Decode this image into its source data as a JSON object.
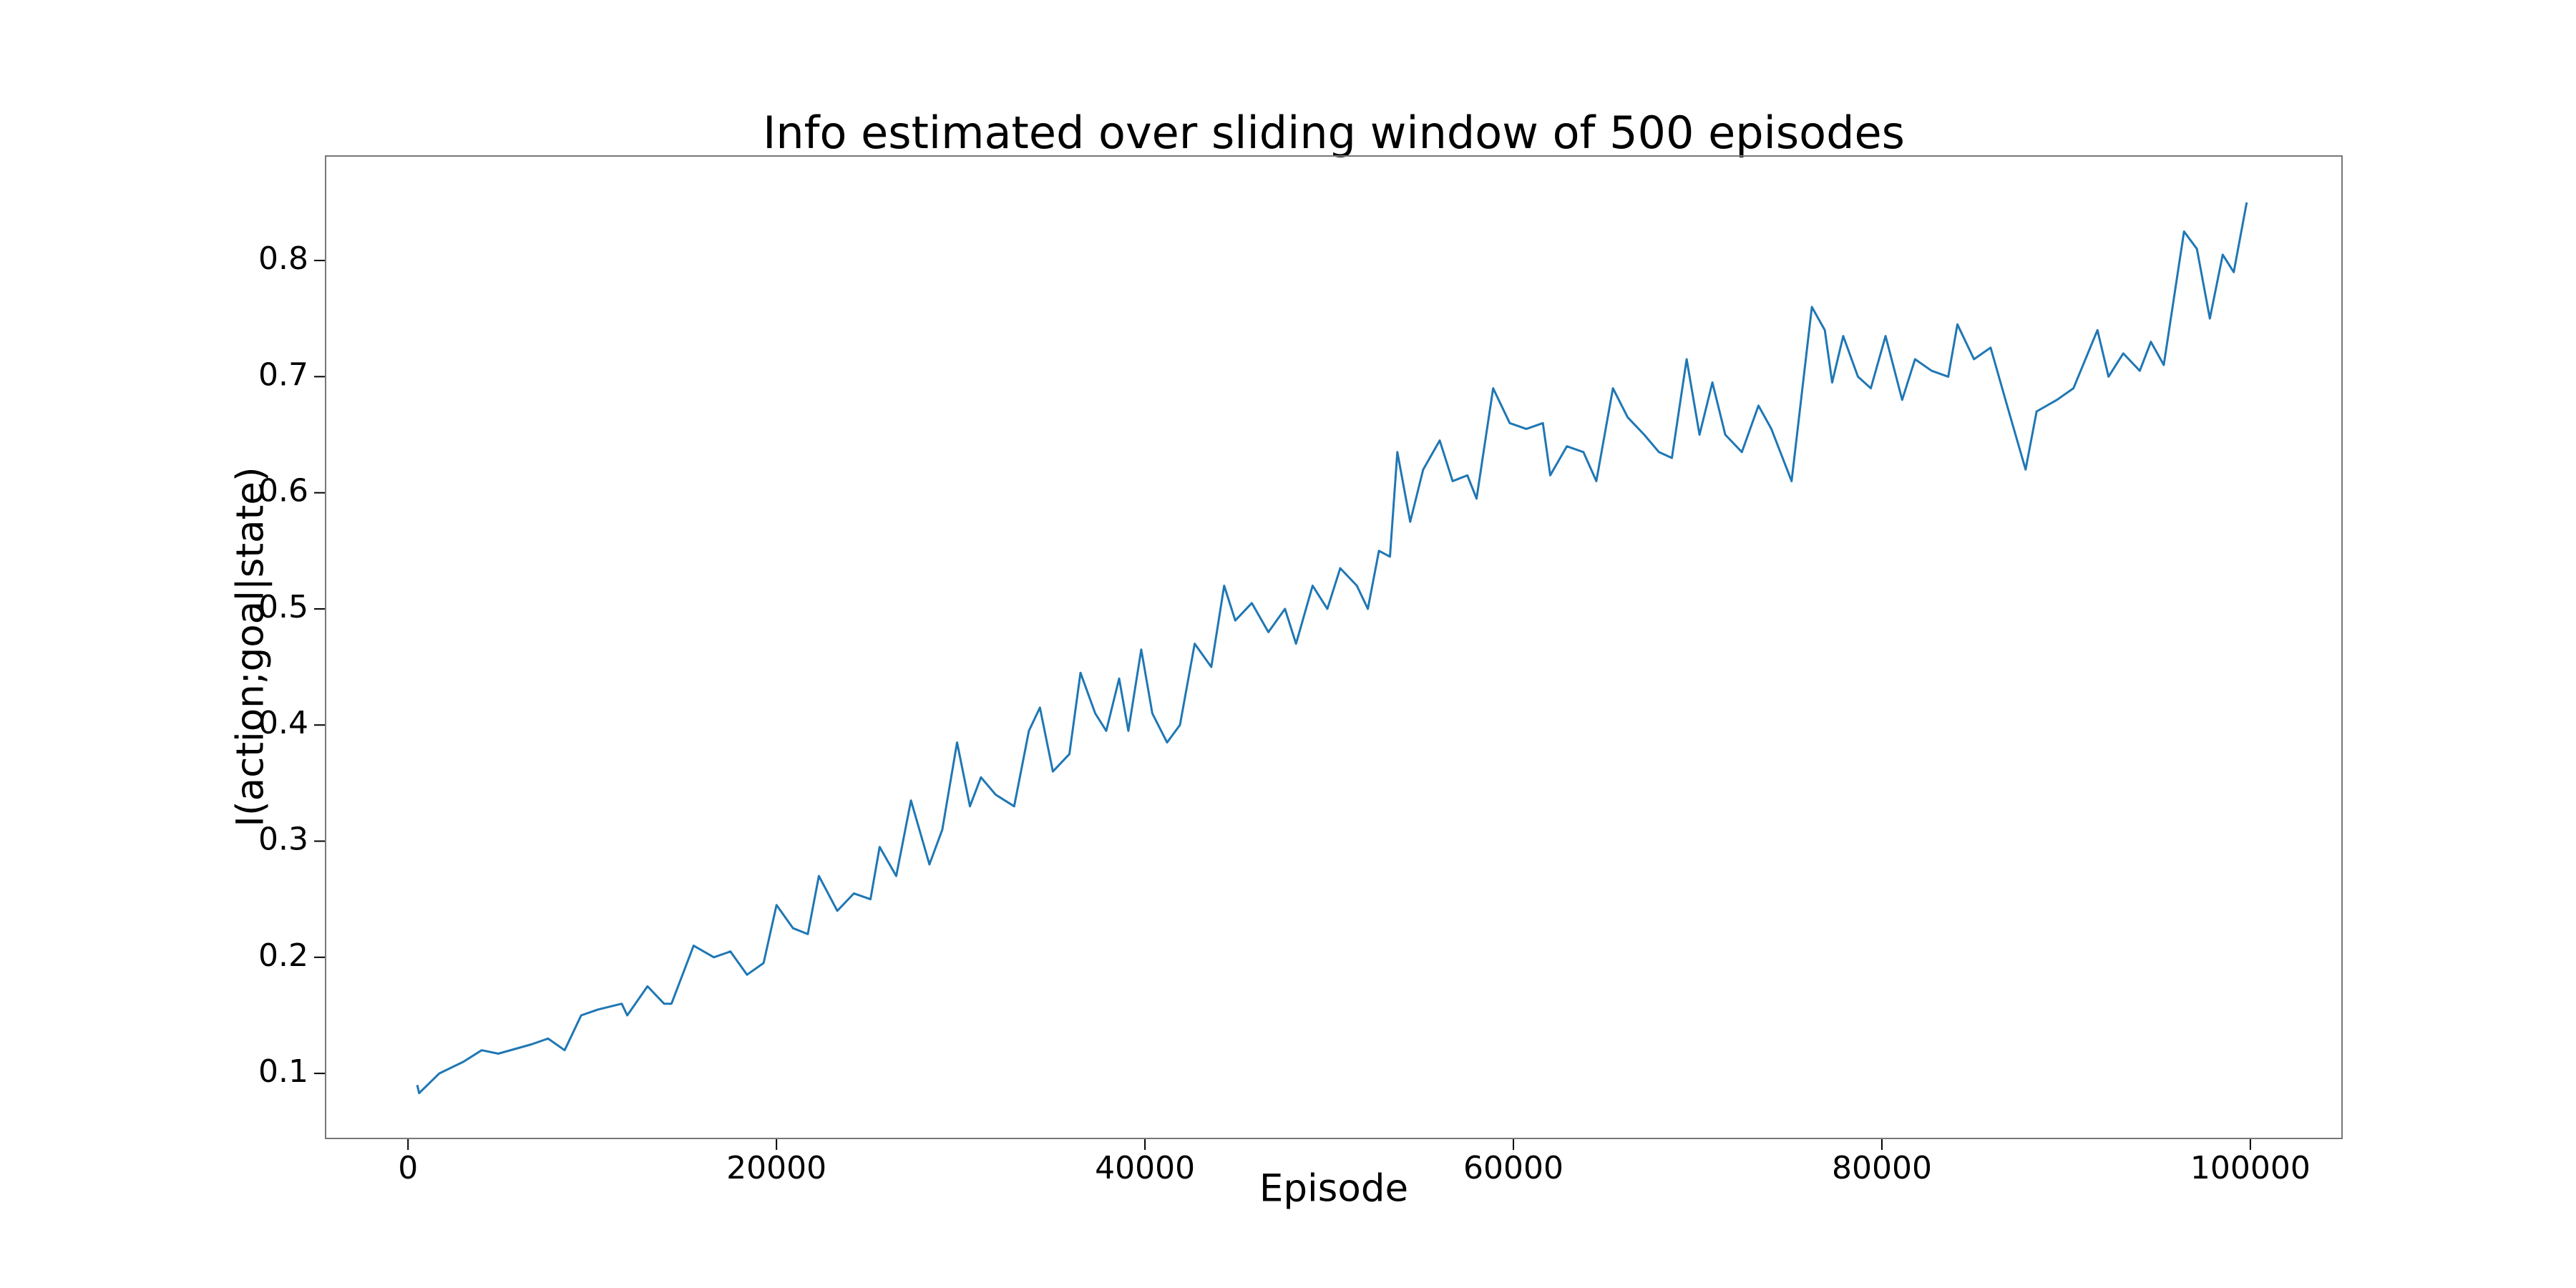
{
  "chart_data": {
    "type": "line",
    "title": "Info estimated over sliding window of 500 episodes",
    "xlabel": "Episode",
    "ylabel": "I(action;goal|state)",
    "color": "#1f77b4",
    "x": [
      500,
      600,
      1700,
      3000,
      4000,
      4900,
      6700,
      7600,
      8500,
      9400,
      10300,
      11600,
      11900,
      13000,
      13900,
      14300,
      15500,
      16600,
      17500,
      18400,
      19300,
      20000,
      20900,
      21700,
      22300,
      23300,
      24200,
      25100,
      25600,
      26500,
      27300,
      28300,
      29000,
      29800,
      30500,
      31100,
      31900,
      32900,
      33700,
      34300,
      35000,
      35900,
      36500,
      37300,
      37900,
      38600,
      39100,
      39800,
      40400,
      41200,
      41900,
      42700,
      43600,
      44300,
      44900,
      45800,
      46700,
      47600,
      48200,
      49100,
      49900,
      50600,
      51500,
      52100,
      52700,
      53300,
      53700,
      54400,
      55100,
      56000,
      56700,
      57500,
      58000,
      58900,
      59800,
      60700,
      61600,
      62000,
      62900,
      63800,
      64500,
      65400,
      66200,
      67100,
      67900,
      68600,
      69400,
      70100,
      70800,
      71500,
      72400,
      73300,
      74000,
      75100,
      76200,
      76900,
      77300,
      77900,
      78700,
      79400,
      80200,
      81100,
      81800,
      82700,
      83600,
      84100,
      85000,
      85900,
      86800,
      87800,
      88400,
      89500,
      90400,
      91700,
      92300,
      93100,
      94000,
      94600,
      95300,
      96400,
      97100,
      97800,
      98500,
      99100,
      99800
    ],
    "values": [
      0.09,
      0.083,
      0.1,
      0.11,
      0.12,
      0.117,
      0.125,
      0.13,
      0.12,
      0.15,
      0.155,
      0.16,
      0.15,
      0.175,
      0.16,
      0.16,
      0.21,
      0.2,
      0.205,
      0.185,
      0.195,
      0.245,
      0.225,
      0.22,
      0.27,
      0.24,
      0.255,
      0.25,
      0.295,
      0.27,
      0.335,
      0.28,
      0.31,
      0.385,
      0.33,
      0.355,
      0.34,
      0.33,
      0.395,
      0.415,
      0.36,
      0.375,
      0.445,
      0.41,
      0.395,
      0.44,
      0.395,
      0.465,
      0.41,
      0.385,
      0.4,
      0.47,
      0.45,
      0.52,
      0.49,
      0.505,
      0.48,
      0.5,
      0.47,
      0.52,
      0.5,
      0.535,
      0.52,
      0.5,
      0.55,
      0.545,
      0.635,
      0.575,
      0.62,
      0.645,
      0.61,
      0.615,
      0.595,
      0.69,
      0.66,
      0.655,
      0.66,
      0.615,
      0.64,
      0.635,
      0.61,
      0.69,
      0.665,
      0.65,
      0.635,
      0.63,
      0.715,
      0.65,
      0.695,
      0.65,
      0.635,
      0.675,
      0.655,
      0.61,
      0.76,
      0.74,
      0.695,
      0.735,
      0.7,
      0.69,
      0.735,
      0.68,
      0.715,
      0.705,
      0.7,
      0.745,
      0.715,
      0.725,
      0.675,
      0.62,
      0.67,
      0.68,
      0.69,
      0.74,
      0.7,
      0.72,
      0.705,
      0.73,
      0.71,
      0.825,
      0.81,
      0.75,
      0.805,
      0.79,
      0.85
    ],
    "xlim": [
      -4475,
      104975
    ],
    "ylim": [
      0.044,
      0.89
    ],
    "xticks": [
      0,
      20000,
      40000,
      60000,
      80000,
      100000
    ],
    "yticks": [
      0.1,
      0.2,
      0.3,
      0.4,
      0.5,
      0.6,
      0.7,
      0.8
    ]
  }
}
